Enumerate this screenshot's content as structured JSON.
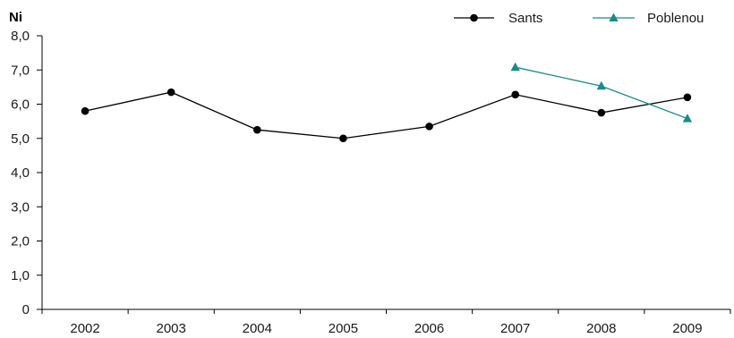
{
  "chart_data": {
    "type": "line",
    "ylabel": "Ni",
    "categories": [
      "2002",
      "2003",
      "2004",
      "2005",
      "2006",
      "2007",
      "2008",
      "2009"
    ],
    "ylim": [
      0,
      8
    ],
    "yticks": [
      "0",
      "1,0",
      "2,0",
      "3,0",
      "4,0",
      "5,0",
      "6,0",
      "7,0",
      "8,0"
    ],
    "grid": false,
    "legend_position": "top-right",
    "series": [
      {
        "name": "Sants",
        "color": "#000000",
        "marker": "circle",
        "values": [
          5.8,
          6.35,
          5.25,
          5.0,
          5.35,
          6.28,
          5.75,
          6.2
        ]
      },
      {
        "name": "Poblenou",
        "color": "#1a8a8a",
        "marker": "triangle",
        "values": [
          null,
          null,
          null,
          null,
          null,
          7.08,
          6.53,
          5.58
        ]
      }
    ]
  }
}
